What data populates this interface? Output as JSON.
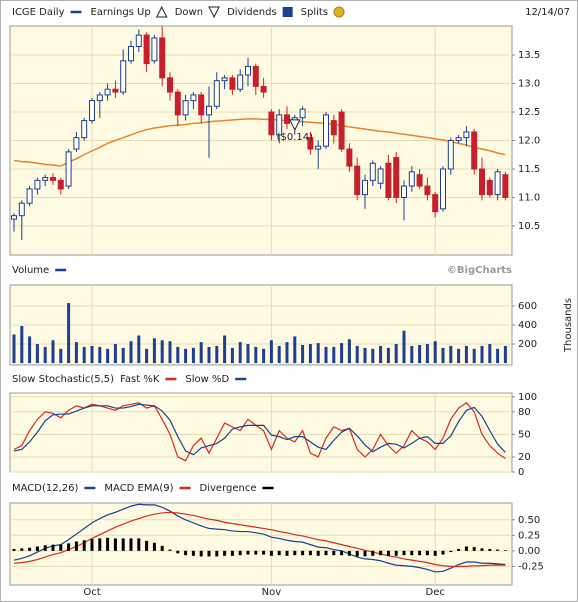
{
  "chart_data": [
    {
      "type": "candlestick",
      "title": "ICGE Daily",
      "color": "#1c3f94",
      "down_color": "#c8202a",
      "date": "12/14/07",
      "legend": [
        "Earnings Up",
        "Down",
        "Dividends",
        "Splits"
      ],
      "open": [
        10.62,
        10.68,
        10.9,
        11.15,
        11.3,
        11.35,
        11.3,
        11.2,
        11.85,
        12.05,
        12.35,
        12.7,
        12.8,
        12.9,
        12.85,
        13.4,
        13.65,
        13.85,
        13.4,
        13.8,
        13.1,
        12.85,
        12.45,
        12.7,
        12.8,
        12.45,
        12.6,
        13.05,
        13.1,
        12.9,
        13.15,
        13.3,
        12.95,
        12.5,
        12.1,
        12.45,
        12.3,
        12.4,
        12.05,
        11.85,
        11.9,
        12.35,
        12.5,
        11.85,
        11.55,
        11.05,
        11.3,
        11.25,
        11.6,
        11.7,
        11.0,
        11.2,
        11.4,
        11.2,
        11.05,
        10.8,
        11.5,
        12.0,
        12.05,
        12.15,
        11.5,
        11.3,
        11.05,
        11.4
      ],
      "high": [
        10.72,
        10.95,
        11.2,
        11.35,
        11.4,
        11.42,
        11.35,
        11.85,
        12.15,
        12.4,
        12.75,
        12.85,
        13.0,
        13.05,
        13.6,
        13.75,
        13.95,
        13.9,
        13.85,
        14.0,
        13.2,
        12.9,
        12.8,
        12.85,
        12.85,
        12.95,
        13.2,
        13.15,
        13.15,
        13.25,
        13.45,
        13.35,
        13.1,
        12.55,
        12.55,
        12.6,
        12.45,
        12.6,
        12.15,
        12.0,
        12.5,
        12.45,
        12.55,
        11.95,
        11.7,
        11.4,
        11.65,
        11.55,
        11.75,
        11.8,
        11.3,
        11.55,
        11.5,
        11.35,
        11.1,
        11.55,
        12.05,
        12.1,
        12.25,
        12.2,
        11.7,
        11.35,
        11.5,
        11.45
      ],
      "low": [
        10.4,
        10.25,
        10.85,
        11.05,
        11.2,
        11.22,
        11.05,
        11.15,
        11.8,
        12.0,
        12.3,
        12.4,
        12.7,
        12.75,
        12.8,
        13.35,
        13.55,
        13.2,
        13.35,
        12.95,
        12.7,
        12.25,
        12.35,
        12.55,
        12.3,
        11.7,
        12.55,
        12.9,
        12.8,
        12.85,
        12.95,
        12.8,
        12.75,
        12.0,
        11.95,
        12.2,
        12.1,
        12.25,
        11.75,
        11.5,
        11.85,
        11.95,
        11.8,
        11.45,
        10.95,
        10.8,
        11.2,
        11.15,
        10.95,
        10.9,
        10.6,
        11.1,
        11.15,
        10.95,
        10.65,
        10.75,
        11.4,
        11.95,
        11.9,
        11.4,
        10.95,
        11.0,
        10.95,
        10.95
      ],
      "close": [
        10.68,
        10.9,
        11.15,
        11.3,
        11.35,
        11.3,
        11.15,
        11.8,
        12.05,
        12.35,
        12.7,
        12.8,
        12.9,
        12.85,
        13.4,
        13.65,
        13.85,
        13.35,
        13.8,
        13.1,
        12.85,
        12.45,
        12.7,
        12.8,
        12.45,
        12.6,
        13.05,
        13.1,
        12.9,
        13.15,
        13.3,
        12.95,
        12.85,
        12.1,
        12.45,
        12.3,
        12.4,
        12.55,
        11.85,
        11.9,
        12.45,
        12.1,
        11.85,
        11.55,
        11.05,
        11.3,
        11.6,
        11.5,
        11.0,
        11.0,
        11.2,
        11.45,
        11.2,
        11.05,
        10.75,
        11.5,
        12.0,
        12.05,
        12.15,
        11.5,
        11.05,
        11.05,
        11.45,
        11.0
      ],
      "moving_average": {
        "color": "#e8852a",
        "values": [
          11.65,
          11.63,
          11.62,
          11.6,
          11.58,
          11.57,
          11.55,
          11.62,
          11.68,
          11.75,
          11.82,
          11.88,
          11.95,
          12.0,
          12.05,
          12.1,
          12.15,
          12.19,
          12.22,
          12.24,
          12.26,
          12.27,
          12.28,
          12.3,
          12.31,
          12.33,
          12.34,
          12.35,
          12.36,
          12.37,
          12.38,
          12.38,
          12.37,
          12.37,
          12.36,
          12.35,
          12.34,
          12.33,
          12.32,
          12.31,
          12.3,
          12.28,
          12.26,
          12.24,
          12.22,
          12.2,
          12.18,
          12.16,
          12.15,
          12.13,
          12.11,
          12.09,
          12.07,
          12.05,
          12.03,
          12.01,
          11.98,
          11.95,
          11.92,
          11.88,
          11.85,
          11.82,
          11.78,
          11.75
        ]
      },
      "annotations": [
        {
          "text": "($0.14)",
          "x": 36
        }
      ],
      "ylim": [
        9.99,
        14.01
      ],
      "yticks": [
        10.5,
        {
          "value": 11,
          "label": "11.0"
        },
        11.5,
        {
          "value": 12,
          "label": "12.0"
        },
        12.5,
        {
          "value": 13,
          "label": "13.0"
        },
        13.5
      ],
      "grid": true
    },
    {
      "type": "bar",
      "title": "Volume",
      "color": "#1c3f94",
      "credit": "©BigCharts",
      "y_label": "Thousands",
      "values": [
        300,
        390,
        280,
        200,
        170,
        240,
        150,
        630,
        220,
        170,
        180,
        170,
        150,
        200,
        160,
        230,
        290,
        150,
        260,
        240,
        230,
        170,
        150,
        160,
        220,
        170,
        180,
        290,
        160,
        220,
        200,
        170,
        150,
        240,
        180,
        220,
        280,
        190,
        200,
        210,
        170,
        170,
        210,
        250,
        180,
        160,
        150,
        180,
        160,
        200,
        340,
        180,
        190,
        200,
        230,
        160,
        180,
        150,
        180,
        150,
        180,
        200,
        150,
        180
      ],
      "ylim": [
        -20,
        820
      ],
      "yticks": [
        200,
        400,
        600
      ],
      "grid": true
    },
    {
      "type": "line",
      "title": "Slow Stochastic(5,5)",
      "series": [
        {
          "name": "Fast %K",
          "color": "#d62b1f",
          "values": [
            30,
            35,
            55,
            70,
            80,
            78,
            72,
            82,
            88,
            85,
            90,
            88,
            85,
            82,
            88,
            90,
            92,
            85,
            88,
            70,
            50,
            20,
            15,
            35,
            45,
            25,
            45,
            65,
            60,
            55,
            70,
            62,
            55,
            30,
            55,
            45,
            40,
            55,
            25,
            20,
            45,
            60,
            55,
            58,
            30,
            20,
            30,
            50,
            35,
            25,
            35,
            55,
            45,
            40,
            30,
            45,
            70,
            85,
            92,
            80,
            50,
            35,
            25,
            18
          ]
        },
        {
          "name": "Slow %D",
          "color": "#1c3f94",
          "values": [
            28,
            30,
            40,
            53,
            68,
            76,
            77,
            77,
            81,
            85,
            88,
            88,
            88,
            85,
            85,
            87,
            90,
            89,
            88,
            81,
            69,
            47,
            28,
            23,
            32,
            35,
            38,
            45,
            57,
            60,
            62,
            62,
            62,
            49,
            47,
            43,
            47,
            47,
            40,
            33,
            30,
            42,
            53,
            58,
            48,
            36,
            27,
            33,
            38,
            37,
            32,
            38,
            45,
            47,
            38,
            38,
            48,
            67,
            82,
            86,
            74,
            55,
            37,
            26
          ]
        }
      ],
      "ylim": [
        0,
        105
      ],
      "yticks": [
        0,
        20,
        50,
        80,
        100
      ],
      "grid": true
    },
    {
      "type": "line",
      "categories": [
        null,
        null,
        null,
        null,
        null,
        null,
        null,
        null,
        null,
        null,
        "Oct",
        null,
        null,
        null,
        null,
        null,
        null,
        null,
        null,
        null,
        null,
        null,
        null,
        null,
        null,
        null,
        null,
        null,
        null,
        null,
        null,
        null,
        null,
        "Nov",
        null,
        null,
        null,
        null,
        null,
        null,
        null,
        null,
        null,
        null,
        null,
        null,
        null,
        null,
        null,
        null,
        null,
        null,
        null,
        null,
        "Dec",
        null,
        null,
        null,
        null,
        null,
        null,
        null,
        null,
        null
      ],
      "series": [
        {
          "name": "MACD(12,26)",
          "color": "#1c3f94",
          "values": [
            -0.15,
            -0.12,
            -0.08,
            -0.02,
            0.04,
            0.08,
            0.1,
            0.18,
            0.27,
            0.36,
            0.45,
            0.52,
            0.58,
            0.62,
            0.67,
            0.72,
            0.75,
            0.74,
            0.74,
            0.7,
            0.64,
            0.56,
            0.5,
            0.45,
            0.4,
            0.36,
            0.35,
            0.34,
            0.32,
            0.31,
            0.31,
            0.29,
            0.27,
            0.22,
            0.2,
            0.17,
            0.15,
            0.14,
            0.1,
            0.06,
            0.05,
            0.02,
            0.0,
            -0.05,
            -0.1,
            -0.13,
            -0.14,
            -0.16,
            -0.2,
            -0.23,
            -0.24,
            -0.25,
            -0.27,
            -0.3,
            -0.34,
            -0.33,
            -0.28,
            -0.22,
            -0.18,
            -0.18,
            -0.2,
            -0.2,
            -0.21,
            -0.22
          ]
        },
        {
          "name": "MACD EMA(9)",
          "color": "#d62b1f",
          "values": [
            -0.2,
            -0.19,
            -0.17,
            -0.14,
            -0.1,
            -0.06,
            -0.03,
            0.02,
            0.07,
            0.13,
            0.2,
            0.26,
            0.32,
            0.38,
            0.43,
            0.48,
            0.52,
            0.56,
            0.59,
            0.61,
            0.62,
            0.61,
            0.59,
            0.57,
            0.54,
            0.51,
            0.49,
            0.46,
            0.44,
            0.42,
            0.4,
            0.38,
            0.36,
            0.34,
            0.31,
            0.29,
            0.26,
            0.24,
            0.21,
            0.18,
            0.16,
            0.13,
            0.1,
            0.07,
            0.04,
            0.01,
            -0.02,
            -0.05,
            -0.08,
            -0.1,
            -0.13,
            -0.15,
            -0.17,
            -0.19,
            -0.22,
            -0.24,
            -0.25,
            -0.25,
            -0.25,
            -0.24,
            -0.24,
            -0.23,
            -0.23,
            -0.23
          ]
        },
        {
          "name": "Divergence",
          "color": "#000000",
          "type": "bar",
          "values": [
            0.03,
            0.04,
            0.05,
            0.07,
            0.09,
            0.1,
            0.1,
            0.12,
            0.15,
            0.17,
            0.19,
            0.2,
            0.21,
            0.2,
            0.2,
            0.2,
            0.2,
            0.16,
            0.13,
            0.08,
            0.02,
            -0.04,
            -0.07,
            -0.08,
            -0.09,
            -0.09,
            -0.09,
            -0.08,
            -0.08,
            -0.07,
            -0.06,
            -0.06,
            -0.06,
            -0.08,
            -0.07,
            -0.08,
            -0.07,
            -0.07,
            -0.07,
            -0.08,
            -0.07,
            -0.07,
            -0.07,
            -0.08,
            -0.09,
            -0.09,
            -0.08,
            -0.07,
            -0.08,
            -0.08,
            -0.07,
            -0.07,
            -0.07,
            -0.07,
            -0.08,
            -0.06,
            -0.02,
            0.03,
            0.07,
            0.06,
            0.04,
            0.03,
            0.02,
            0.01
          ]
        }
      ],
      "ylim": [
        -0.55,
        0.77
      ],
      "yticks": [
        {
          "value": -0.25,
          "label": "-0.25"
        },
        {
          "value": 0,
          "label": "0.00"
        },
        0.25,
        {
          "value": 0.5,
          "label": "0.50"
        }
      ],
      "grid": true
    }
  ]
}
